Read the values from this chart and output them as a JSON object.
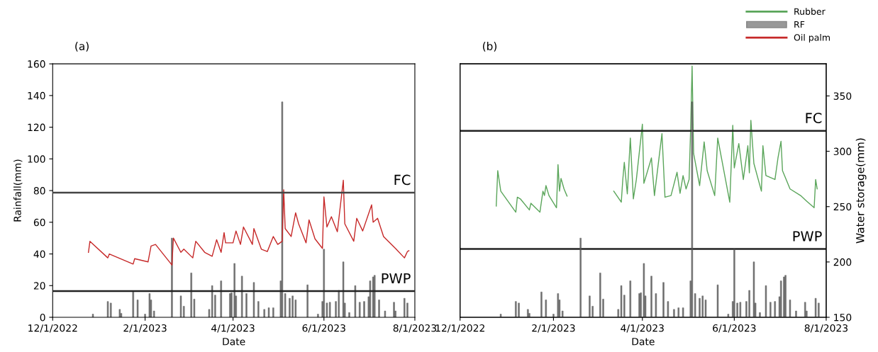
{
  "chart_data": [
    {
      "type": "bar",
      "title": "(a)",
      "xlabel": "Date",
      "ylabel": "Rainfall(mm)",
      "legend": "top right",
      "grid": false,
      "xlim": [
        "2022-12-01",
        "2023-08-01"
      ],
      "xticks": [
        {
          "value": "2022-12-01",
          "label": "12/1/2022"
        },
        {
          "value": "2023-02-01",
          "label": "2/1/2023"
        },
        {
          "value": "2023-04-01",
          "label": "4/1/2023"
        },
        {
          "value": "2023-06-01",
          "label": "6/1/2023"
        },
        {
          "value": "2023-08-01",
          "label": "8/1/2023"
        }
      ],
      "ylim": [
        0,
        160
      ],
      "yticks": [
        0,
        20,
        40,
        60,
        80,
        100,
        120,
        140,
        160
      ],
      "ref_lines": [
        {
          "axis": "y",
          "value": 78.7,
          "label": "FC",
          "color": "#444444"
        },
        {
          "axis": "y",
          "value": 16.5,
          "label": "PWP",
          "color": "#222222"
        }
      ],
      "series": [
        {
          "type": "bar",
          "color": "#555555",
          "axis": "y",
          "x": [
            "2022-12-28",
            "2023-01-07",
            "2023-01-09",
            "2023-01-15",
            "2023-01-16",
            "2023-01-24",
            "2023-01-27",
            "2023-02-01",
            "2023-02-04",
            "2023-02-05",
            "2023-02-07",
            "2023-02-19",
            "2023-02-25",
            "2023-02-27",
            "2023-03-04",
            "2023-03-06",
            "2023-03-16",
            "2023-03-18",
            "2023-03-20",
            "2023-03-24",
            "2023-03-30",
            "2023-03-31",
            "2023-04-02",
            "2023-04-03",
            "2023-04-07",
            "2023-04-10",
            "2023-04-15",
            "2023-04-18",
            "2023-04-22",
            "2023-04-25",
            "2023-04-28",
            "2023-05-03",
            "2023-05-04",
            "2023-05-06",
            "2023-05-09",
            "2023-05-11",
            "2023-05-13",
            "2023-05-21",
            "2023-05-28",
            "2023-05-31",
            "2023-06-01",
            "2023-06-03",
            "2023-06-05",
            "2023-06-09",
            "2023-06-11",
            "2023-06-14",
            "2023-06-15",
            "2023-06-18",
            "2023-06-22",
            "2023-06-25",
            "2023-06-28",
            "2023-07-01",
            "2023-07-02",
            "2023-07-04",
            "2023-07-05",
            "2023-07-08",
            "2023-07-12",
            "2023-07-18",
            "2023-07-19",
            "2023-07-25",
            "2023-07-27"
          ],
          "values": [
            2,
            10,
            9,
            5,
            2.5,
            16,
            11,
            2,
            15,
            11,
            4,
            50,
            13.5,
            7,
            28,
            11.5,
            5,
            20,
            14,
            23,
            15,
            15.5,
            34,
            13.5,
            26,
            15,
            22,
            10,
            5,
            6,
            6,
            23,
            136,
            15,
            12,
            13.5,
            11,
            20.5,
            2,
            10,
            43,
            9,
            9.5,
            10,
            17,
            35,
            9,
            3,
            20,
            9.5,
            10,
            13,
            23,
            25.5,
            26.5,
            11,
            4,
            9.5,
            4,
            12,
            9
          ]
        },
        {
          "type": "line",
          "name": "Oil palm",
          "color": "#c62828",
          "axis": "y",
          "x": [
            "2022-12-25",
            "2022-12-26",
            "2023-01-07",
            "2023-01-08",
            "2023-01-24",
            "2023-01-25",
            "2023-02-03",
            "2023-02-05",
            "2023-02-08",
            "2023-02-19",
            "2023-02-20",
            "2023-02-25",
            "2023-02-27",
            "2023-03-05",
            "2023-03-07",
            "2023-03-13",
            "2023-03-18",
            "2023-03-21",
            "2023-03-24",
            "2023-03-26",
            "2023-03-27",
            "2023-04-01",
            "2023-04-03",
            "2023-04-06",
            "2023-04-08",
            "2023-04-14",
            "2023-04-15",
            "2023-04-20",
            "2023-04-24",
            "2023-04-28",
            "2023-05-01",
            "2023-05-04",
            "2023-05-05",
            "2023-05-06",
            "2023-05-10",
            "2023-05-13",
            "2023-05-15",
            "2023-05-20",
            "2023-05-22",
            "2023-05-26",
            "2023-05-31",
            "2023-06-01",
            "2023-06-03",
            "2023-06-06",
            "2023-06-10",
            "2023-06-14",
            "2023-06-15",
            "2023-06-21",
            "2023-06-23",
            "2023-06-27",
            "2023-07-03",
            "2023-07-04",
            "2023-07-07",
            "2023-07-11",
            "2023-07-19",
            "2023-07-25",
            "2023-07-27",
            "2023-07-28"
          ],
          "values": [
            41,
            48,
            37.5,
            40,
            33.6,
            37,
            35,
            45,
            46,
            33,
            50,
            41,
            43,
            37.5,
            48,
            41,
            38.5,
            49,
            41,
            53.5,
            47,
            47,
            54.5,
            46,
            57,
            46,
            56,
            43,
            41.5,
            51,
            46,
            48,
            80.5,
            56,
            51,
            66,
            59,
            47,
            61.5,
            49.5,
            43.5,
            76,
            57,
            63.5,
            54,
            86.5,
            59,
            48,
            62.5,
            54.5,
            71,
            60,
            62.5,
            51,
            43.5,
            37.5,
            41.5,
            42
          ]
        }
      ]
    },
    {
      "type": "bar",
      "title": "(b)",
      "xlabel": "Date",
      "y2label": "Water storage(mm)",
      "legend": "top right",
      "grid": false,
      "xlim": [
        "2022-12-01",
        "2023-08-01"
      ],
      "xticks": [
        {
          "value": "2022-12-01",
          "label": "12/1/2022"
        },
        {
          "value": "2023-02-01",
          "label": "2/1/2023"
        },
        {
          "value": "2023-04-01",
          "label": "4/1/2023"
        },
        {
          "value": "2023-06-01",
          "label": "6/1/2023"
        },
        {
          "value": "2023-08-01",
          "label": "8/1/2023"
        }
      ],
      "ylim": [
        0,
        160
      ],
      "y2lim": [
        150,
        379
      ],
      "y2ticks": [
        150,
        200,
        250,
        300,
        350
      ],
      "ref_lines": [
        {
          "axis": "y2",
          "value": 318.5,
          "label": "FC",
          "color": "#222222"
        },
        {
          "axis": "y2",
          "value": 211.7,
          "label": "PWP",
          "color": "#222222"
        }
      ],
      "series": [
        {
          "type": "bar",
          "name": "RF",
          "color": "#555555",
          "axis": "y",
          "x": [
            "2022-12-28",
            "2023-01-07",
            "2023-01-09",
            "2023-01-15",
            "2023-01-16",
            "2023-01-24",
            "2023-01-27",
            "2023-02-01",
            "2023-02-04",
            "2023-02-05",
            "2023-02-07",
            "2023-02-19",
            "2023-02-25",
            "2023-02-27",
            "2023-03-04",
            "2023-03-06",
            "2023-03-16",
            "2023-03-18",
            "2023-03-20",
            "2023-03-24",
            "2023-03-30",
            "2023-03-31",
            "2023-04-02",
            "2023-04-03",
            "2023-04-07",
            "2023-04-10",
            "2023-04-15",
            "2023-04-18",
            "2023-04-22",
            "2023-04-25",
            "2023-04-28",
            "2023-05-03",
            "2023-05-04",
            "2023-05-06",
            "2023-05-09",
            "2023-05-11",
            "2023-05-13",
            "2023-05-21",
            "2023-05-28",
            "2023-05-31",
            "2023-06-01",
            "2023-06-03",
            "2023-06-05",
            "2023-06-09",
            "2023-06-11",
            "2023-06-14",
            "2023-06-15",
            "2023-06-18",
            "2023-06-22",
            "2023-06-25",
            "2023-06-28",
            "2023-07-01",
            "2023-07-02",
            "2023-07-04",
            "2023-07-05",
            "2023-07-08",
            "2023-07-12",
            "2023-07-18",
            "2023-07-19",
            "2023-07-25",
            "2023-07-27"
          ],
          "values": [
            2,
            10,
            9,
            5,
            2.5,
            16,
            11,
            2,
            15,
            11,
            4,
            50,
            13.5,
            7,
            28,
            11.5,
            5,
            20,
            14,
            23,
            15,
            15.5,
            34,
            13.5,
            26,
            15,
            22,
            10,
            5,
            6,
            6,
            23,
            136,
            15,
            12,
            13.5,
            11,
            20.5,
            2,
            10,
            43,
            9,
            9.5,
            10,
            17,
            35,
            9,
            3,
            20,
            9.5,
            10,
            13,
            23,
            25.5,
            26.5,
            11,
            4,
            9.5,
            4,
            12,
            9
          ]
        },
        {
          "type": "line",
          "name": "Rubber",
          "color": "#5aa55a",
          "axis": "y2",
          "x": [
            "2022-12-25",
            "2022-12-26",
            "2022-12-28",
            "2023-01-07",
            "2023-01-08",
            "2023-01-10",
            "2023-01-16",
            "2023-01-17",
            "2023-01-23",
            "2023-01-25",
            "2023-01-26",
            "2023-01-27",
            "2023-01-29",
            "2023-02-03",
            "2023-02-04",
            "2023-02-05",
            "2023-02-06",
            "2023-02-08",
            "2023-02-10",
            "2023-02-25",
            "2023-03-13",
            "2023-03-18",
            "2023-03-19",
            "2023-03-20",
            "2023-03-22",
            "2023-03-24",
            "2023-03-26",
            "2023-03-28",
            "2023-04-01",
            "2023-04-02",
            "2023-04-07",
            "2023-04-09",
            "2023-04-14",
            "2023-04-16",
            "2023-04-20",
            "2023-04-24",
            "2023-04-26",
            "2023-04-28",
            "2023-04-30",
            "2023-05-02",
            "2023-05-03",
            "2023-05-04",
            "2023-05-05",
            "2023-05-09",
            "2023-05-12",
            "2023-05-14",
            "2023-05-19",
            "2023-05-21",
            "2023-05-29",
            "2023-05-31",
            "2023-06-01",
            "2023-06-04",
            "2023-06-07",
            "2023-06-10",
            "2023-06-11",
            "2023-06-12",
            "2023-06-14",
            "2023-06-19",
            "2023-06-20",
            "2023-06-22",
            "2023-06-28",
            "2023-06-30",
            "2023-07-02",
            "2023-07-03",
            "2023-07-08",
            "2023-07-15",
            "2023-07-19",
            "2023-07-24",
            "2023-07-25",
            "2023-07-26"
          ],
          "values": [
            250.5,
            282.5,
            264,
            245,
            258.5,
            257,
            247,
            253,
            245,
            264,
            260,
            269,
            260,
            249,
            288,
            264,
            275.5,
            266,
            259.5,
            null,
            264,
            254,
            274.5,
            290,
            261.5,
            312,
            257,
            274.5,
            324.5,
            271,
            294,
            260,
            316,
            258.5,
            260,
            281,
            262,
            278,
            266,
            274.5,
            319,
            377,
            298,
            269,
            308.5,
            282.5,
            260,
            312,
            254,
            323.5,
            285,
            307,
            274.5,
            305,
            280.5,
            328,
            289,
            264,
            305,
            278,
            274.5,
            294,
            309,
            282.5,
            266,
            260,
            255,
            249,
            274.5,
            266
          ]
        }
      ]
    }
  ]
}
